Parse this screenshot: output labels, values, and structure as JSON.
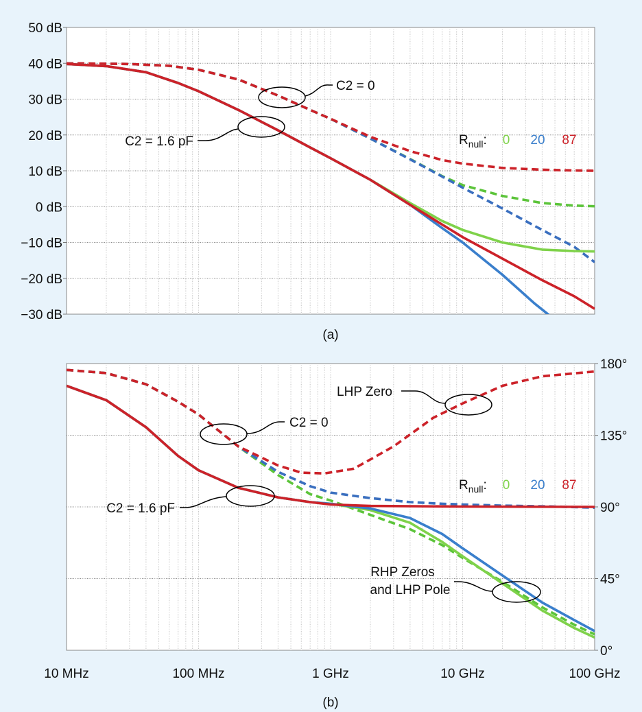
{
  "chart_data": [
    {
      "type": "line",
      "caption": "(a)",
      "x_scale": "log",
      "xlim_hz": [
        10000000.0,
        100000000000.0
      ],
      "ylim": [
        -30,
        50
      ],
      "y_ticks": [
        50,
        40,
        30,
        20,
        10,
        0,
        -10,
        -20,
        -30
      ],
      "y_tick_labels": [
        "50 dB",
        "40 dB",
        "30 dB",
        "20 dB",
        "10 dB",
        "0 dB",
        "−10 dB",
        "−20 dB",
        "−30 dB"
      ],
      "legend": {
        "label_main": "R",
        "label_sub": "null",
        "label_suffix": ":",
        "entries": [
          "0",
          "20",
          "87"
        ]
      },
      "annotations": [
        "C2 = 0",
        "C2 = 1.6 pF"
      ],
      "series": [
        {
          "rnull": "0",
          "c2": "0",
          "style": "dashed",
          "color": "#5cc43a",
          "points": [
            [
              10000000.0,
              40
            ],
            [
              30000000.0,
              39.8
            ],
            [
              60000000.0,
              39.3
            ],
            [
              100000000.0,
              38.2
            ],
            [
              200000000.0,
              35.5
            ],
            [
              400000000.0,
              31
            ],
            [
              700000000.0,
              27
            ],
            [
              1000000000.0,
              24.5
            ],
            [
              2000000000.0,
              19
            ],
            [
              4000000000.0,
              13.3
            ],
            [
              7000000000.0,
              8.5
            ],
            [
              10000000000.0,
              6
            ],
            [
              20000000000.0,
              3
            ],
            [
              40000000000.0,
              1
            ],
            [
              70000000000.0,
              0.3
            ],
            [
              100000000000.0,
              0.1
            ]
          ]
        },
        {
          "rnull": "20",
          "c2": "0",
          "style": "dashed",
          "color": "#3a6fbf",
          "points": [
            [
              10000000.0,
              40
            ],
            [
              30000000.0,
              39.8
            ],
            [
              60000000.0,
              39.3
            ],
            [
              100000000.0,
              38.2
            ],
            [
              200000000.0,
              35.5
            ],
            [
              400000000.0,
              31
            ],
            [
              700000000.0,
              27
            ],
            [
              1000000000.0,
              24.5
            ],
            [
              2000000000.0,
              19
            ],
            [
              4000000000.0,
              13.2
            ],
            [
              7000000000.0,
              8.4
            ],
            [
              10000000000.0,
              5.3
            ],
            [
              20000000000.0,
              -0.5
            ],
            [
              40000000000.0,
              -6.5
            ],
            [
              70000000000.0,
              -11.2
            ],
            [
              100000000000.0,
              -15.5
            ]
          ]
        },
        {
          "rnull": "87",
          "c2": "0",
          "style": "dashed",
          "color": "#cc2229",
          "points": [
            [
              10000000.0,
              40
            ],
            [
              30000000.0,
              39.8
            ],
            [
              60000000.0,
              39.3
            ],
            [
              100000000.0,
              38.2
            ],
            [
              200000000.0,
              35.5
            ],
            [
              400000000.0,
              31
            ],
            [
              700000000.0,
              27
            ],
            [
              1000000000.0,
              24.5
            ],
            [
              2000000000.0,
              19.5
            ],
            [
              4000000000.0,
              15.5
            ],
            [
              7000000000.0,
              13
            ],
            [
              10000000000.0,
              12
            ],
            [
              20000000000.0,
              10.8
            ],
            [
              40000000000.0,
              10.3
            ],
            [
              70000000000.0,
              10.1
            ],
            [
              100000000000.0,
              10
            ]
          ]
        },
        {
          "rnull": "0",
          "c2": "1.6 pF",
          "style": "solid",
          "color": "#7fd24a",
          "points": [
            [
              10000000.0,
              39.8
            ],
            [
              20000000.0,
              39.2
            ],
            [
              40000000.0,
              37.5
            ],
            [
              70000000.0,
              34.5
            ],
            [
              100000000.0,
              32.2
            ],
            [
              200000000.0,
              27
            ],
            [
              400000000.0,
              21.3
            ],
            [
              700000000.0,
              16.5
            ],
            [
              1000000000.0,
              13.5
            ],
            [
              2000000000.0,
              7.5
            ],
            [
              4000000000.0,
              1
            ],
            [
              7000000000.0,
              -4
            ],
            [
              10000000000.0,
              -6.5
            ],
            [
              20000000000.0,
              -10
            ],
            [
              40000000000.0,
              -12
            ],
            [
              70000000000.0,
              -12.4
            ],
            [
              100000000000.0,
              -12.5
            ]
          ]
        },
        {
          "rnull": "20",
          "c2": "1.6 pF",
          "style": "solid",
          "color": "#3a7fcc",
          "points": [
            [
              10000000.0,
              39.8
            ],
            [
              20000000.0,
              39.2
            ],
            [
              40000000.0,
              37.5
            ],
            [
              70000000.0,
              34.5
            ],
            [
              100000000.0,
              32.2
            ],
            [
              200000000.0,
              27
            ],
            [
              400000000.0,
              21.3
            ],
            [
              700000000.0,
              16.5
            ],
            [
              1000000000.0,
              13.5
            ],
            [
              2000000000.0,
              7.5
            ],
            [
              4000000000.0,
              0.5
            ],
            [
              7000000000.0,
              -6
            ],
            [
              10000000000.0,
              -10
            ],
            [
              20000000000.0,
              -19
            ],
            [
              35000000000.0,
              -27
            ],
            [
              46000000000.0,
              -30.5
            ]
          ]
        },
        {
          "rnull": "87",
          "c2": "1.6 pF",
          "style": "solid",
          "color": "#cc2229",
          "points": [
            [
              10000000.0,
              39.8
            ],
            [
              20000000.0,
              39.2
            ],
            [
              40000000.0,
              37.5
            ],
            [
              70000000.0,
              34.5
            ],
            [
              100000000.0,
              32.2
            ],
            [
              200000000.0,
              27
            ],
            [
              400000000.0,
              21.3
            ],
            [
              700000000.0,
              16.5
            ],
            [
              1000000000.0,
              13.5
            ],
            [
              2000000000.0,
              7.5
            ],
            [
              4000000000.0,
              0.5
            ],
            [
              7000000000.0,
              -5
            ],
            [
              10000000000.0,
              -8.5
            ],
            [
              20000000000.0,
              -14.5
            ],
            [
              40000000000.0,
              -20.5
            ],
            [
              70000000000.0,
              -25
            ],
            [
              100000000000.0,
              -28.5
            ]
          ]
        }
      ]
    },
    {
      "type": "line",
      "caption": "(b)",
      "x_scale": "log",
      "xlim_hz": [
        10000000.0,
        100000000000.0
      ],
      "x_ticks_hz": [
        10000000.0,
        100000000.0,
        1000000000.0,
        10000000000.0,
        100000000000.0
      ],
      "x_tick_labels": [
        "10 MHz",
        "100 MHz",
        "1 GHz",
        "10 GHz",
        "100 GHz"
      ],
      "ylim": [
        0,
        180
      ],
      "y_ticks": [
        180,
        135,
        90,
        45,
        0
      ],
      "y_tick_labels": [
        "180°",
        "135°",
        "90°",
        "45°",
        "0°"
      ],
      "y_axis_side": "right",
      "legend": {
        "label_main": "R",
        "label_sub": "null",
        "label_suffix": ":",
        "entries": [
          "0",
          "20",
          "87"
        ]
      },
      "annotations": [
        "LHP Zero",
        "C2 = 0",
        "C2 = 1.6 pF",
        "RHP Zeros",
        "and LHP Pole"
      ],
      "series": [
        {
          "rnull": "0",
          "c2": "0",
          "style": "dashed",
          "color": "#5cc43a",
          "points": [
            [
              10000000.0,
              176
            ],
            [
              20000000.0,
              174
            ],
            [
              40000000.0,
              167
            ],
            [
              70000000.0,
              156
            ],
            [
              100000000.0,
              148
            ],
            [
              200000000.0,
              128
            ],
            [
              400000000.0,
              110
            ],
            [
              700000000.0,
              98
            ],
            [
              1000000000.0,
              94
            ],
            [
              2000000000.0,
              85
            ],
            [
              4000000000.0,
              76
            ],
            [
              7000000000.0,
              66
            ],
            [
              10000000000.0,
              58
            ],
            [
              20000000000.0,
              43
            ],
            [
              40000000000.0,
              27
            ],
            [
              70000000000.0,
              16
            ],
            [
              100000000000.0,
              10
            ]
          ]
        },
        {
          "rnull": "20",
          "c2": "0",
          "style": "dashed",
          "color": "#3a6fbf",
          "points": [
            [
              10000000.0,
              176
            ],
            [
              20000000.0,
              174
            ],
            [
              40000000.0,
              167
            ],
            [
              70000000.0,
              156
            ],
            [
              100000000.0,
              148
            ],
            [
              200000000.0,
              128
            ],
            [
              400000000.0,
              112
            ],
            [
              700000000.0,
              103
            ],
            [
              1000000000.0,
              99
            ],
            [
              2000000000.0,
              95.5
            ],
            [
              4000000000.0,
              93
            ],
            [
              7000000000.0,
              92
            ],
            [
              10000000000.0,
              91.5
            ],
            [
              20000000000.0,
              90.8
            ],
            [
              50000000000.0,
              90.2
            ],
            [
              100000000000.0,
              89.5
            ]
          ]
        },
        {
          "rnull": "87",
          "c2": "0",
          "style": "dashed",
          "color": "#cc2229",
          "points": [
            [
              10000000.0,
              176
            ],
            [
              20000000.0,
              174
            ],
            [
              40000000.0,
              167
            ],
            [
              70000000.0,
              156
            ],
            [
              100000000.0,
              148
            ],
            [
              200000000.0,
              128
            ],
            [
              400000000.0,
              116
            ],
            [
              600000000.0,
              111.5
            ],
            [
              900000000.0,
              111
            ],
            [
              1500000000.0,
              114
            ],
            [
              3000000000.0,
              128
            ],
            [
              6000000000.0,
              146
            ],
            [
              10000000000.0,
              155
            ],
            [
              20000000000.0,
              166
            ],
            [
              40000000000.0,
              172
            ],
            [
              100000000000.0,
              175
            ]
          ]
        },
        {
          "rnull": "0",
          "c2": "1.6 pF",
          "style": "solid",
          "color": "#7fd24a",
          "points": [
            [
              10000000.0,
              166
            ],
            [
              20000000.0,
              157
            ],
            [
              40000000.0,
              140
            ],
            [
              70000000.0,
              122
            ],
            [
              100000000.0,
              113
            ],
            [
              200000000.0,
              102
            ],
            [
              400000000.0,
              96
            ],
            [
              700000000.0,
              93
            ],
            [
              1000000000.0,
              92
            ],
            [
              2000000000.0,
              88
            ],
            [
              4000000000.0,
              80
            ],
            [
              7000000000.0,
              68
            ],
            [
              10000000000.0,
              59
            ],
            [
              20000000000.0,
              42
            ],
            [
              40000000000.0,
              25
            ],
            [
              70000000000.0,
              14
            ],
            [
              100000000000.0,
              8
            ]
          ]
        },
        {
          "rnull": "20",
          "c2": "1.6 pF",
          "style": "solid",
          "color": "#3a7fcc",
          "points": [
            [
              10000000.0,
              166
            ],
            [
              20000000.0,
              157
            ],
            [
              40000000.0,
              140
            ],
            [
              70000000.0,
              122
            ],
            [
              100000000.0,
              113
            ],
            [
              200000000.0,
              102
            ],
            [
              400000000.0,
              96
            ],
            [
              700000000.0,
              93
            ],
            [
              1000000000.0,
              92
            ],
            [
              2000000000.0,
              89
            ],
            [
              4000000000.0,
              83
            ],
            [
              7000000000.0,
              73
            ],
            [
              10000000000.0,
              64
            ],
            [
              20000000000.0,
              47
            ],
            [
              40000000000.0,
              30
            ],
            [
              70000000000.0,
              19
            ],
            [
              100000000000.0,
              12
            ]
          ]
        },
        {
          "rnull": "87",
          "c2": "1.6 pF",
          "style": "solid",
          "color": "#cc2229",
          "points": [
            [
              10000000.0,
              166
            ],
            [
              20000000.0,
              157
            ],
            [
              40000000.0,
              140
            ],
            [
              70000000.0,
              122
            ],
            [
              100000000.0,
              113
            ],
            [
              200000000.0,
              102
            ],
            [
              400000000.0,
              96
            ],
            [
              700000000.0,
              93
            ],
            [
              1000000000.0,
              91.5
            ],
            [
              2000000000.0,
              90.6
            ],
            [
              10000000000.0,
              90.2
            ],
            [
              100000000000.0,
              90
            ]
          ]
        }
      ]
    }
  ]
}
